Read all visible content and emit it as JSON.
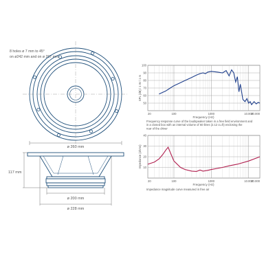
{
  "drawing": {
    "holes_note_line1": "8 holes ø 7 mm to 45°",
    "holes_note_line2": "on ø242 mm and on ø 267 mm",
    "front_diameter": "ø 260 mm",
    "depth": "117 mm",
    "magnet_diameter": "ø 200 mm",
    "basket_diameter": "ø 228 mm",
    "line_color": "#1f4f7a"
  },
  "chart_data": [
    {
      "type": "line",
      "title": "",
      "ylabel": "SPL (dB) / 1 W / 1 m",
      "xlabel": "Frequency (Hz)",
      "xscale": "log",
      "xlim": [
        20,
        20000
      ],
      "ylim": [
        40,
        100
      ],
      "grid": true,
      "x_ticks": [
        "20",
        "100",
        "1000",
        "10.000",
        "20.000"
      ],
      "y_ticks": [
        "100",
        "90",
        "80",
        "70",
        "60",
        "50"
      ],
      "series": [
        {
          "color": "#1f3f8c",
          "x": [
            40,
            60,
            80,
            100,
            150,
            200,
            300,
            400,
            500,
            600,
            700,
            800,
            1000,
            1500,
            2000,
            2500,
            3000,
            3500,
            4000,
            4500,
            5000,
            5500,
            6000,
            7000,
            8000,
            9000,
            10000,
            11000,
            12000,
            14000,
            16000,
            18000,
            20000
          ],
          "y": [
            62,
            66,
            70,
            73,
            77,
            80,
            84,
            87,
            89,
            90,
            89,
            91,
            92,
            91,
            90,
            93,
            86,
            94,
            90,
            78,
            85,
            65,
            75,
            55,
            52,
            56,
            50,
            52,
            48,
            52,
            49,
            51,
            50
          ]
        }
      ],
      "caption": "Frequency response curve of the loudspeaker taken in a free field environment and in a closed box with an internal volume of 60 litres (2.12 cu.ft) enclosing the rear of the driver"
    },
    {
      "type": "line",
      "title": "",
      "ylabel": "Impedance (ohms)",
      "xlabel": "Frequency (Hz)",
      "xscale": "log",
      "xlim": [
        20,
        20000
      ],
      "ylim": [
        0,
        40
      ],
      "grid": true,
      "x_ticks": [
        "20",
        "100",
        "1000",
        "10.000",
        "20.000"
      ],
      "y_ticks": [
        "40",
        "30",
        "20",
        "10"
      ],
      "series": [
        {
          "color": "#b01e4e",
          "x": [
            20,
            30,
            40,
            50,
            60,
            70,
            80,
            100,
            150,
            200,
            300,
            400,
            500,
            600,
            800,
            1000,
            2000,
            3000,
            5000,
            10000,
            20000
          ],
          "y": [
            13,
            15,
            18,
            22,
            26,
            29,
            24,
            16,
            10,
            8,
            6.5,
            6.2,
            7.5,
            6.5,
            7.2,
            8,
            10,
            11.5,
            13,
            16,
            20
          ]
        }
      ],
      "caption": "Impedance magnitude curve measured in free air"
    }
  ]
}
